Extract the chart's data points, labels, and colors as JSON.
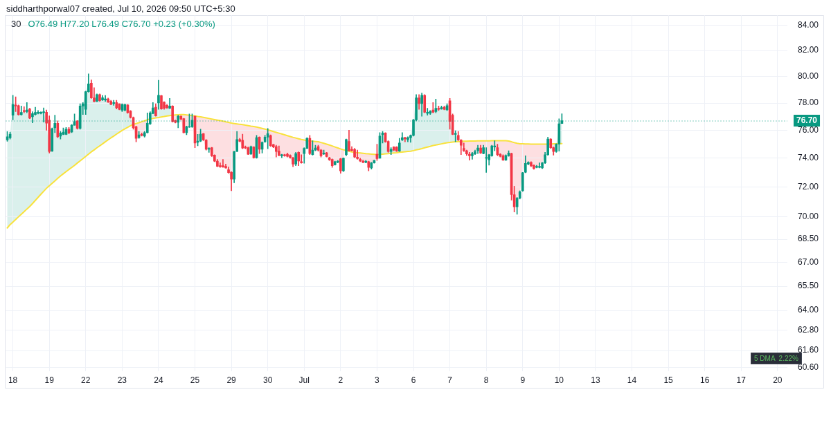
{
  "chart_data": {
    "type": "candlestick",
    "title": "30",
    "subtitle": "O76.49 H77.20 L76.49 C76.70 +0.23 (+0.30%)",
    "annotations": [
      "siddharthporwal07 created, Jul 10, 2026 09:50 UTC+5:30",
      "5 DMA  2.22%"
    ],
    "categories": [
      null,
      null,
      "18",
      null,
      null,
      null,
      null,
      null,
      null,
      null,
      null,
      null,
      null,
      null,
      null,
      "19",
      null,
      null,
      null,
      null,
      null,
      null,
      null,
      null,
      null,
      null,
      null,
      null,
      "22",
      null,
      null,
      null,
      null,
      null,
      null,
      null,
      null,
      null,
      null,
      null,
      null,
      "23",
      null,
      null,
      null,
      null,
      null,
      null,
      null,
      null,
      null,
      null,
      null,
      null,
      "24",
      null,
      null,
      null,
      null,
      null,
      null,
      null,
      null,
      null,
      null,
      null,
      null,
      "25",
      null,
      null,
      null,
      null,
      null,
      null,
      null,
      null,
      null,
      null,
      null,
      null,
      "29",
      null,
      null,
      null,
      null,
      null,
      null,
      null,
      null,
      null,
      null,
      null,
      null,
      "30",
      null,
      null,
      null,
      null,
      null,
      null,
      null,
      null,
      null,
      null,
      null,
      null,
      "Jul",
      null,
      null,
      null,
      null,
      null,
      null,
      null,
      null,
      null,
      null,
      null,
      null,
      "2",
      null,
      null,
      null,
      null,
      null,
      null,
      null,
      null,
      null,
      null,
      null,
      null,
      "3",
      null,
      null,
      null,
      null,
      null,
      null,
      null,
      null,
      null,
      null,
      null,
      null,
      "6",
      null,
      null,
      null,
      null,
      null,
      null,
      null,
      null,
      null,
      null,
      null,
      null,
      "7",
      null,
      null,
      null,
      null,
      null,
      null,
      null,
      null,
      null,
      null,
      null,
      null,
      "8",
      null,
      null,
      null,
      null,
      null,
      null,
      null,
      null,
      null,
      null,
      null,
      null,
      "9",
      null,
      null,
      null,
      null,
      null,
      null,
      null,
      null,
      null,
      null,
      null,
      null,
      "10",
      null,
      null,
      null,
      null,
      null,
      null,
      null,
      null,
      null,
      null,
      null,
      null,
      "13",
      null,
      null,
      null,
      null,
      null,
      null,
      null,
      null,
      null,
      null,
      null,
      null,
      "14",
      null,
      null,
      null,
      null,
      null,
      null,
      null,
      null,
      null,
      null,
      null,
      null,
      "15",
      null,
      null,
      null,
      null,
      null,
      null,
      null,
      null,
      null,
      null,
      null,
      null,
      "16",
      null,
      null,
      null,
      null,
      null,
      null,
      null,
      null,
      null,
      null,
      null,
      null,
      "17",
      null,
      null,
      null,
      null,
      null,
      null,
      null,
      null,
      null,
      null,
      null,
      null,
      "20",
      null,
      null,
      null
    ],
    "ohlc": [
      [
        75.3,
        75.9,
        75.2,
        75.53
      ],
      [
        75.45,
        75.87,
        75.37,
        75.72
      ],
      [
        77.1,
        78.58,
        76.76,
        77.9
      ],
      [
        77.86,
        78.46,
        77.36,
        77.78
      ],
      [
        77.81,
        77.85,
        77.1,
        77.14
      ],
      [
        77.14,
        77.78,
        77.1,
        77.31
      ],
      [
        77.44,
        77.73,
        77.27,
        77.36
      ],
      [
        77.36,
        78.03,
        77.27,
        77.49
      ],
      [
        77.56,
        77.61,
        76.85,
        76.88
      ],
      [
        76.98,
        77.36,
        76.54,
        77.22
      ],
      [
        77.15,
        77.69,
        77.1,
        77.31
      ],
      [
        77.24,
        77.44,
        77.19,
        77.32
      ],
      [
        77.24,
        77.36,
        77.19,
        77.32
      ],
      [
        77.27,
        77.64,
        76.59,
        77.36
      ],
      [
        77.32,
        77.49,
        76.0,
        76.51
      ],
      [
        76.73,
        77.05,
        74.37,
        74.47
      ],
      [
        74.5,
        76.17,
        74.47,
        76.12
      ],
      [
        76.17,
        77.1,
        75.83,
        76.51
      ],
      [
        76.51,
        76.68,
        75.47,
        75.53
      ],
      [
        75.58,
        75.92,
        75.37,
        75.8
      ],
      [
        75.7,
        76.17,
        75.67,
        75.87
      ],
      [
        75.7,
        76.2,
        75.67,
        76.08
      ],
      [
        76.08,
        76.2,
        75.75,
        75.8
      ],
      [
        75.87,
        76.42,
        75.83,
        76.37
      ],
      [
        76.37,
        77.19,
        76.37,
        76.63
      ],
      [
        76.68,
        76.71,
        76.08,
        76.14
      ],
      [
        76.14,
        77.95,
        76.08,
        77.78
      ],
      [
        77.78,
        78.03,
        77.15,
        77.95
      ],
      [
        77.53,
        78.89,
        77.15,
        78.85
      ],
      [
        78.85,
        80.2,
        78.8,
        79.44
      ],
      [
        79.49,
        79.74,
        78.34,
        78.38
      ],
      [
        78.38,
        79.15,
        78.07,
        78.12
      ],
      [
        78.12,
        78.68,
        78.1,
        78.63
      ],
      [
        78.63,
        78.68,
        78.12,
        78.17
      ],
      [
        78.22,
        78.56,
        78.19,
        78.39
      ],
      [
        78.22,
        78.56,
        78.12,
        78.31
      ],
      [
        78.31,
        78.37,
        78.03,
        78.07
      ],
      [
        78.12,
        78.2,
        77.86,
        77.9
      ],
      [
        77.95,
        78.2,
        77.83,
        78.03
      ],
      [
        78.03,
        78.2,
        77.56,
        77.64
      ],
      [
        77.95,
        77.95,
        77.49,
        77.53
      ],
      [
        77.47,
        77.95,
        77.36,
        77.9
      ],
      [
        77.47,
        77.93,
        77.4,
        77.88
      ],
      [
        77.86,
        77.9,
        77.24,
        77.27
      ],
      [
        77.41,
        77.44,
        76.88,
        76.93
      ],
      [
        76.93,
        76.98,
        76.08,
        76.17
      ],
      [
        76.25,
        76.3,
        75.17,
        75.42
      ],
      [
        75.47,
        75.92,
        75.42,
        75.67
      ],
      [
        75.7,
        75.8,
        75.58,
        75.63
      ],
      [
        75.58,
        75.92,
        75.5,
        75.83
      ],
      [
        75.83,
        77.27,
        75.8,
        76.51
      ],
      [
        76.47,
        77.36,
        76.42,
        77.27
      ],
      [
        77.22,
        78.03,
        77.2,
        77.64
      ],
      [
        77.69,
        77.95,
        77.02,
        77.05
      ],
      [
        78.0,
        79.71,
        77.53,
        78.58
      ],
      [
        78.55,
        78.58,
        77.53,
        77.56
      ],
      [
        78.07,
        78.1,
        77.53,
        77.61
      ],
      [
        77.83,
        77.9,
        77.6,
        77.64
      ],
      [
        77.61,
        78.34,
        77.58,
        77.78
      ],
      [
        77.78,
        77.8,
        76.59,
        76.63
      ],
      [
        76.71,
        76.75,
        76.53,
        76.58
      ],
      [
        76.58,
        77.1,
        76.17,
        77.02
      ],
      [
        77.02,
        77.05,
        76.76,
        76.81
      ],
      [
        76.85,
        76.88,
        75.8,
        75.83
      ],
      [
        75.83,
        76.3,
        75.67,
        76.25
      ],
      [
        76.22,
        77.19,
        76.2,
        76.27
      ],
      [
        76.25,
        77.19,
        76.2,
        76.73
      ],
      [
        77.02,
        77.05,
        74.75,
        75.08
      ],
      [
        75.13,
        75.7,
        74.88,
        75.22
      ],
      [
        75.22,
        76.08,
        75.18,
        75.72
      ],
      [
        75.75,
        75.78,
        75.25,
        75.3
      ],
      [
        75.3,
        75.33,
        74.58,
        74.63
      ],
      [
        74.63,
        74.75,
        74.42,
        74.7
      ],
      [
        74.75,
        74.78,
        74.12,
        74.17
      ],
      [
        74.22,
        74.25,
        73.76,
        73.79
      ],
      [
        73.79,
        73.92,
        73.4,
        73.43
      ],
      [
        73.48,
        73.67,
        73.35,
        73.4
      ],
      [
        73.48,
        73.92,
        73.35,
        73.38
      ],
      [
        73.43,
        73.59,
        73.3,
        73.32
      ],
      [
        73.19,
        73.38,
        72.94,
        72.99
      ],
      [
        73.02,
        73.06,
        71.74,
        72.54
      ],
      [
        72.54,
        74.5,
        72.29,
        74.47
      ],
      [
        74.47,
        75.92,
        74.47,
        75.33
      ],
      [
        75.33,
        75.42,
        75.17,
        75.2
      ],
      [
        75.28,
        75.72,
        74.67,
        74.72
      ],
      [
        74.8,
        74.87,
        74.67,
        74.72
      ],
      [
        74.75,
        74.8,
        74.25,
        74.28
      ],
      [
        74.3,
        74.87,
        74.25,
        74.83
      ],
      [
        74.8,
        74.83,
        74.0,
        74.03
      ],
      [
        74.03,
        75.63,
        74.0,
        75.47
      ],
      [
        75.5,
        75.53,
        74.33,
        74.63
      ],
      [
        74.63,
        75.17,
        74.37,
        75.13
      ],
      [
        75.17,
        75.63,
        75.13,
        75.5
      ],
      [
        75.5,
        76.13,
        74.67,
        75.75
      ],
      [
        75.62,
        75.67,
        74.83,
        74.88
      ],
      [
        74.97,
        75.0,
        74.75,
        74.8
      ],
      [
        74.83,
        74.92,
        74.08,
        74.47
      ],
      [
        74.5,
        74.87,
        74.17,
        74.2
      ],
      [
        74.17,
        74.28,
        74.03,
        74.25
      ],
      [
        74.25,
        74.28,
        74.13,
        74.17
      ],
      [
        74.28,
        74.37,
        74.08,
        74.13
      ],
      [
        74.2,
        74.25,
        74.0,
        74.03
      ],
      [
        74.03,
        74.08,
        73.4,
        73.59
      ],
      [
        73.59,
        74.42,
        73.48,
        74.33
      ],
      [
        74.42,
        74.45,
        73.48,
        73.8
      ],
      [
        73.76,
        74.25,
        73.64,
        73.67
      ],
      [
        74.33,
        74.75,
        73.64,
        74.7
      ],
      [
        74.7,
        75.47,
        74.67,
        75.42
      ],
      [
        75.42,
        75.63,
        74.25,
        74.33
      ],
      [
        74.25,
        75.25,
        74.22,
        74.58
      ],
      [
        74.58,
        74.92,
        74.53,
        74.72
      ],
      [
        74.83,
        74.92,
        74.5,
        74.58
      ],
      [
        74.58,
        74.63,
        74.08,
        74.17
      ],
      [
        74.3,
        74.58,
        74.25,
        74.37
      ],
      [
        74.38,
        74.42,
        74.08,
        74.12
      ],
      [
        74.03,
        74.08,
        73.84,
        73.89
      ],
      [
        73.92,
        73.95,
        73.35,
        73.48
      ],
      [
        73.54,
        73.79,
        73.51,
        73.76
      ],
      [
        73.72,
        73.84,
        73.67,
        73.8
      ],
      [
        73.97,
        74.0,
        72.95,
        73.11
      ],
      [
        73.11,
        74.03,
        73.06,
        74.0
      ],
      [
        74.25,
        75.37,
        74.17,
        75.33
      ],
      [
        75.2,
        76.0,
        74.5,
        74.53
      ],
      [
        74.63,
        74.83,
        74.5,
        74.55
      ],
      [
        74.63,
        74.7,
        74.03,
        74.08
      ],
      [
        74.08,
        74.58,
        73.92,
        73.97
      ],
      [
        73.92,
        74.0,
        73.76,
        73.8
      ],
      [
        73.8,
        73.87,
        73.67,
        73.71
      ],
      [
        73.71,
        73.84,
        73.67,
        73.8
      ],
      [
        73.76,
        73.8,
        73.11,
        73.35
      ],
      [
        73.32,
        73.71,
        73.24,
        73.67
      ],
      [
        73.67,
        73.87,
        73.64,
        73.84
      ],
      [
        74.28,
        75.0,
        73.84,
        73.97
      ],
      [
        74.0,
        75.83,
        74.0,
        75.58
      ],
      [
        75.67,
        75.92,
        75.08,
        75.8
      ],
      [
        75.8,
        75.83,
        75.13,
        75.17
      ],
      [
        75.2,
        75.25,
        74.42,
        74.47
      ],
      [
        74.47,
        74.75,
        74.25,
        74.63
      ],
      [
        74.8,
        74.83,
        74.53,
        74.58
      ],
      [
        74.8,
        74.83,
        74.47,
        74.5
      ],
      [
        74.5,
        75.42,
        74.47,
        75.08
      ],
      [
        75.3,
        75.83,
        75.25,
        75.47
      ],
      [
        75.47,
        75.5,
        75.17,
        75.38
      ],
      [
        75.33,
        75.53,
        75.17,
        75.47
      ],
      [
        75.47,
        75.67,
        75.13,
        75.63
      ],
      [
        75.63,
        76.8,
        75.58,
        76.76
      ],
      [
        76.76,
        78.63,
        76.68,
        78.38
      ],
      [
        78.38,
        78.63,
        77.53,
        77.95
      ],
      [
        77.95,
        78.75,
        77.02,
        78.58
      ],
      [
        78.58,
        78.63,
        77.27,
        77.32
      ],
      [
        77.24,
        77.61,
        77.1,
        77.32
      ],
      [
        77.24,
        77.44,
        77.15,
        77.39
      ],
      [
        77.49,
        78.03,
        77.27,
        77.32
      ],
      [
        77.36,
        78.29,
        77.27,
        77.61
      ],
      [
        77.61,
        77.78,
        77.44,
        77.53
      ],
      [
        77.56,
        77.78,
        77.53,
        77.66
      ],
      [
        77.69,
        77.78,
        77.49,
        77.53
      ],
      [
        77.49,
        77.95,
        77.44,
        77.81
      ],
      [
        78.17,
        78.34,
        76.08,
        76.64
      ],
      [
        77.1,
        77.19,
        75.67,
        75.7
      ],
      [
        75.7,
        75.97,
        75.17,
        75.78
      ],
      [
        75.63,
        75.92,
        75.25,
        75.3
      ],
      [
        75.3,
        75.33,
        74.25,
        74.92
      ],
      [
        74.7,
        75.08,
        74.47,
        74.53
      ],
      [
        74.53,
        74.58,
        74.2,
        74.3
      ],
      [
        74.28,
        74.42,
        73.87,
        74.17
      ],
      [
        74.17,
        74.42,
        73.92,
        74.33
      ],
      [
        74.3,
        74.58,
        74.25,
        74.47
      ],
      [
        74.53,
        74.92,
        74.33,
        74.72
      ],
      [
        74.72,
        74.92,
        74.33,
        74.37
      ],
      [
        74.33,
        74.92,
        74.3,
        74.75
      ],
      [
        74.0,
        74.75,
        73.01,
        74.03
      ],
      [
        73.89,
        74.28,
        73.51,
        74.25
      ],
      [
        74.17,
        74.92,
        74.13,
        74.87
      ],
      [
        74.8,
        75.25,
        74.53,
        74.87
      ],
      [
        74.75,
        75.0,
        74.17,
        74.25
      ],
      [
        74.28,
        74.33,
        74.08,
        74.13
      ],
      [
        74.17,
        74.25,
        73.84,
        73.87
      ],
      [
        73.87,
        74.25,
        73.84,
        74.2
      ],
      [
        74.17,
        74.53,
        74.13,
        74.37
      ],
      [
        74.33,
        74.37,
        71.1,
        71.48
      ],
      [
        71.47,
        72.05,
        70.3,
        70.65
      ],
      [
        70.65,
        71.29,
        70.15,
        71.24
      ],
      [
        71.24,
        71.74,
        71.18,
        71.67
      ],
      [
        71.74,
        73.01,
        71.7,
        72.98
      ],
      [
        73.02,
        74.17,
        72.98,
        73.64
      ],
      [
        73.59,
        73.76,
        73.54,
        73.71
      ],
      [
        73.71,
        73.76,
        73.4,
        73.46
      ],
      [
        73.51,
        73.54,
        73.22,
        73.27
      ],
      [
        73.35,
        73.51,
        73.32,
        73.43
      ],
      [
        73.35,
        73.67,
        73.32,
        73.43
      ],
      [
        73.32,
        73.71,
        73.27,
        73.67
      ],
      [
        73.67,
        74.42,
        73.62,
        74.25
      ],
      [
        74.25,
        75.5,
        74.2,
        75.37
      ],
      [
        75.37,
        75.4,
        74.7,
        74.75
      ],
      [
        74.75,
        74.8,
        74.22,
        74.47
      ],
      [
        74.47,
        75.03,
        74.42,
        75.0
      ],
      [
        75.0,
        76.83,
        74.5,
        76.47
      ],
      [
        76.49,
        77.2,
        76.49,
        76.7
      ],
      null,
      null,
      null,
      null,
      null,
      null,
      null,
      null,
      null,
      null,
      null,
      null,
      null,
      null,
      null,
      null,
      null,
      null,
      null,
      null,
      null,
      null,
      null,
      null,
      null,
      null,
      null,
      null,
      null,
      null,
      null,
      null,
      null,
      null,
      null,
      null,
      null,
      null,
      null,
      null,
      null,
      null,
      null,
      null,
      null,
      null,
      null,
      null,
      null,
      null,
      null,
      null,
      null,
      null,
      null,
      null,
      null,
      null,
      null,
      null,
      null,
      null,
      null,
      null,
      null,
      null,
      null,
      null,
      null,
      null,
      null,
      null,
      null,
      null,
      null,
      null,
      null,
      null,
      null,
      null
    ],
    "colors": [
      "#089981",
      "#089981",
      "#089981",
      "#f23645",
      "#f23645",
      "#089981",
      "#f23645",
      "#089981",
      "#f23645",
      "#089981",
      "#089981",
      "#089981",
      "#089981",
      "#089981",
      "#f23645",
      "#f23645",
      "#089981",
      "#089981",
      "#f23645",
      "#089981",
      "#089981",
      "#089981",
      "#f23645",
      "#089981",
      "#089981",
      "#f23645",
      "#089981",
      "#089981",
      "#089981",
      "#089981",
      "#f23645",
      "#f23645",
      "#089981",
      "#f23645",
      "#089981",
      "#089981",
      "#f23645",
      "#f23645",
      "#089981",
      "#f23645",
      "#f23645",
      "#089981",
      "#089981",
      "#f23645",
      "#f23645",
      "#f23645",
      "#f23645",
      "#089981",
      "#f23645",
      "#089981",
      "#089981",
      "#089981",
      "#089981",
      "#f23645",
      "#089981",
      "#f23645",
      "#f23645",
      "#f23645",
      "#089981",
      "#f23645",
      "#f23645",
      "#089981",
      "#f23645",
      "#f23645",
      "#089981",
      "#089981",
      "#089981",
      "#f23645",
      "#089981",
      "#089981",
      "#f23645",
      "#f23645",
      "#089981",
      "#f23645",
      "#f23645",
      "#f23645",
      "#f23645",
      "#f23645",
      "#f23645",
      "#f23645",
      "#f23645",
      "#089981",
      "#089981",
      "#f23645",
      "#f23645",
      "#f23645",
      "#f23645",
      "#089981",
      "#f23645",
      "#089981",
      "#f23645",
      "#089981",
      "#089981",
      "#089981",
      "#f23645",
      "#f23645",
      "#f23645",
      "#f23645",
      "#089981",
      "#f23645",
      "#f23645",
      "#f23645",
      "#f23645",
      "#089981",
      "#f23645",
      "#f23645",
      "#089981",
      "#089981",
      "#f23645",
      "#089981",
      "#089981",
      "#f23645",
      "#f23645",
      "#089981",
      "#f23645",
      "#f23645",
      "#f23645",
      "#089981",
      "#089981",
      "#f23645",
      "#089981",
      "#089981",
      "#f23645",
      "#f23645",
      "#f23645",
      "#f23645",
      "#f23645",
      "#f23645",
      "#089981",
      "#f23645",
      "#089981",
      "#089981",
      "#f23645",
      "#089981",
      "#089981",
      "#f23645",
      "#f23645",
      "#089981",
      "#f23645",
      "#f23645",
      "#089981",
      "#089981",
      "#f23645",
      "#089981",
      "#089981",
      "#089981",
      "#089981",
      "#f23645",
      "#089981",
      "#f23645",
      "#089981",
      "#089981",
      "#f23645",
      "#089981",
      "#f23645",
      "#089981",
      "#f23645",
      "#089981",
      "#f23645",
      "#f23645",
      "#089981",
      "#f23645",
      "#f23645",
      "#f23645",
      "#f23645",
      "#f23645",
      "#089981",
      "#089981",
      "#089981",
      "#f23645",
      "#089981",
      "#089981",
      "#089981",
      "#089981",
      "#089981",
      "#f23645",
      "#f23645",
      "#f23645",
      "#089981",
      "#089981",
      "#f23645",
      "#f23645",
      "#089981",
      "#089981",
      "#089981",
      "#089981",
      "#089981",
      "#f23645",
      "#f23645",
      "#089981",
      "#089981",
      "#089981",
      "#089981",
      "#089981",
      "#f23645",
      "#f23645",
      "#089981",
      "#089981",
      "#089981",
      null,
      null,
      null,
      null,
      null,
      null,
      null,
      null,
      null,
      null,
      null,
      null,
      null,
      null,
      null,
      null,
      null,
      null,
      null,
      null,
      null,
      null,
      null,
      null,
      null,
      null,
      null,
      null,
      null,
      null,
      null,
      null,
      null,
      null,
      null,
      null,
      null,
      null,
      null,
      null,
      null,
      null,
      null,
      null,
      null,
      null,
      null,
      null,
      null,
      null,
      null,
      null,
      null,
      null,
      null,
      null,
      null,
      null,
      null,
      null,
      null,
      null,
      null,
      null,
      null,
      null,
      null,
      null,
      null,
      null,
      null,
      null,
      null,
      null,
      null,
      null,
      null,
      null,
      null,
      null
    ],
    "series": [
      {
        "type": "line",
        "color": "#f9e23c",
        "values": [
          69.24,
          69.46,
          69.63,
          69.8,
          69.98,
          70.15,
          70.32,
          70.5,
          70.67,
          70.87,
          71.08,
          71.29,
          71.5,
          71.71,
          71.91,
          72.08,
          72.25,
          72.42,
          72.59,
          72.76,
          72.91,
          73.06,
          73.21,
          73.35,
          73.5,
          73.66,
          73.81,
          73.97,
          74.13,
          74.29,
          74.45,
          74.59,
          74.74,
          74.88,
          75.02,
          75.17,
          75.31,
          75.45,
          75.58,
          75.72,
          75.85,
          75.99,
          76.1,
          76.22,
          76.33,
          76.43,
          76.49,
          76.55,
          76.62,
          76.69,
          76.76,
          76.82,
          76.86,
          76.9,
          76.93,
          76.97,
          77.0,
          77.04,
          77.07,
          77.1,
          77.12,
          77.13,
          77.14,
          77.14,
          77.12,
          77.1,
          77.07,
          77.05,
          77.01,
          76.98,
          76.94,
          76.9,
          76.86,
          76.82,
          76.78,
          76.74,
          76.7,
          76.66,
          76.61,
          76.57,
          76.52,
          76.49,
          76.46,
          76.43,
          76.41,
          76.37,
          76.34,
          76.3,
          76.27,
          76.23,
          76.18,
          76.13,
          76.08,
          76.03,
          75.97,
          75.91,
          75.85,
          75.79,
          75.73,
          75.67,
          75.61,
          75.55,
          75.49,
          75.44,
          75.39,
          75.34,
          75.3,
          75.25,
          75.23,
          75.21,
          75.19,
          75.17,
          75.12,
          75.06,
          75.0,
          74.94,
          74.87,
          74.8,
          74.73,
          74.66,
          74.6,
          74.55,
          74.5,
          74.45,
          74.41,
          74.39,
          74.37,
          74.35,
          74.32,
          74.31,
          74.29,
          74.27,
          74.25,
          74.27,
          74.29,
          74.31,
          74.33,
          74.35,
          74.37,
          74.39,
          74.42,
          74.44,
          74.46,
          74.48,
          74.5,
          74.54,
          74.59,
          74.63,
          74.68,
          74.74,
          74.79,
          74.84,
          74.9,
          74.94,
          74.98,
          75.02,
          75.06,
          75.1,
          75.13,
          75.15,
          75.17,
          75.18,
          75.2,
          75.21,
          75.21,
          75.22,
          75.23,
          75.23,
          75.24,
          75.24,
          75.24,
          75.24,
          75.24,
          75.25,
          75.25,
          75.25,
          75.25,
          75.25,
          75.25,
          75.22,
          75.17,
          75.11,
          75.06,
          75.03,
          75.02,
          75.01,
          75.01,
          75.0,
          75.0,
          75.0,
          75.0,
          75.0,
          75.0,
          75.0,
          75.0,
          75.02,
          75.03,
          75.04,
          75.04,
          null,
          null,
          null,
          null,
          null,
          null,
          null,
          null,
          null,
          null,
          null,
          null,
          null,
          null,
          null,
          null,
          null,
          null,
          null,
          null,
          null,
          null,
          null,
          null,
          null,
          null,
          null,
          null,
          null,
          null,
          null,
          null,
          null,
          null,
          null,
          null,
          null,
          null,
          null,
          null,
          null,
          null,
          null,
          null,
          null,
          null,
          null,
          null,
          null,
          null,
          null,
          null,
          null,
          null,
          null,
          null,
          null,
          null,
          null,
          null,
          null,
          null,
          null,
          null,
          null,
          null,
          null,
          null,
          null,
          null,
          null,
          null,
          null,
          null,
          null,
          null,
          null,
          null,
          null,
          null
        ]
      }
    ],
    "ylim": [
      60.4,
      84.8
    ],
    "yticks": [
      {
        "value": 60.6,
        "label": "60.60"
      },
      {
        "value": 61.6,
        "label": "61.60"
      },
      {
        "value": 62.8,
        "label": "62.80"
      },
      {
        "value": 64,
        "label": "64.00"
      },
      {
        "value": 65.5,
        "label": "65.50"
      },
      {
        "value": 67,
        "label": "67.00"
      },
      {
        "value": 68.5,
        "label": "68.50"
      },
      {
        "value": 70,
        "label": "70.00"
      },
      {
        "value": 72,
        "label": "72.00"
      },
      {
        "value": 74,
        "label": "74.00"
      },
      {
        "value": 76,
        "label": "76.00"
      },
      {
        "value": 78,
        "label": "78.00"
      },
      {
        "value": 80,
        "label": "80.00"
      },
      {
        "value": 82,
        "label": "82.00"
      },
      {
        "value": 84,
        "label": "84.00"
      }
    ],
    "log": true,
    "grid": true,
    "marker": "none",
    "ref_lines": [
      {
        "axis": "y",
        "value": 76.7,
        "label": "76.70",
        "color": "#089981",
        "line_style": "dotted"
      }
    ]
  }
}
